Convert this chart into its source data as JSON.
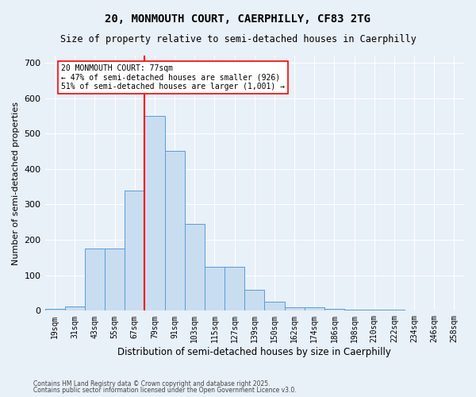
{
  "title1": "20, MONMOUTH COURT, CAERPHILLY, CF83 2TG",
  "title2": "Size of property relative to semi-detached houses in Caerphilly",
  "xlabel": "Distribution of semi-detached houses by size in Caerphilly",
  "ylabel": "Number of semi-detached properties",
  "categories": [
    "19sqm",
    "31sqm",
    "43sqm",
    "55sqm",
    "67sqm",
    "79sqm",
    "91sqm",
    "103sqm",
    "115sqm",
    "127sqm",
    "139sqm",
    "150sqm",
    "162sqm",
    "174sqm",
    "186sqm",
    "198sqm",
    "210sqm",
    "222sqm",
    "234sqm",
    "246sqm",
    "258sqm"
  ],
  "values": [
    5,
    12,
    175,
    175,
    340,
    550,
    450,
    245,
    125,
    125,
    60,
    25,
    10,
    10,
    5,
    3,
    2,
    2,
    1,
    1,
    1
  ],
  "bar_color": "#c9ddf0",
  "bar_edge_color": "#5b9bd5",
  "vline_color": "red",
  "annotation_text": "20 MONMOUTH COURT: 77sqm\n← 47% of semi-detached houses are smaller (926)\n51% of semi-detached houses are larger (1,001) →",
  "annotation_box_color": "white",
  "annotation_box_edge": "red",
  "footnote1": "Contains HM Land Registry data © Crown copyright and database right 2025.",
  "footnote2": "Contains public sector information licensed under the Open Government Licence v3.0.",
  "bg_color": "#e8f0f8",
  "ylim": [
    0,
    720
  ],
  "yticks": [
    0,
    100,
    200,
    300,
    400,
    500,
    600,
    700
  ],
  "grid_color": "white",
  "title1_fontsize": 10,
  "title2_fontsize": 8.5,
  "xlabel_fontsize": 8.5,
  "ylabel_fontsize": 8,
  "xtick_fontsize": 7,
  "ytick_fontsize": 8,
  "annot_fontsize": 7,
  "footnote_fontsize": 5.5
}
